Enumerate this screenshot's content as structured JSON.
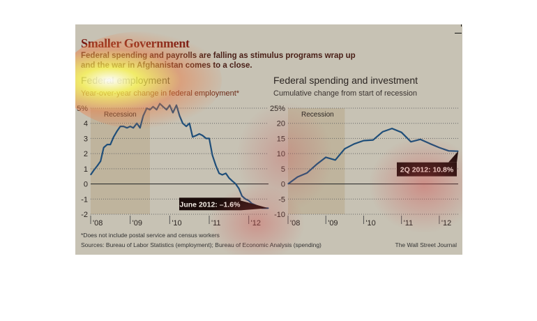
{
  "graphic": {
    "title": "Smaller Government",
    "dek": "Federal spending and payrolls are falling as stimulus programs wrap up and the war in Afghanistan comes to a close.",
    "footnote": "*Does not include postal service and census workers",
    "sources": "Sources: Bureau of Labor Statistics (employment); Bureau of Economic Analysis (spending)",
    "credit": "The Wall Street Journal",
    "colors": {
      "line": "#1f4e79",
      "recession": "#b8aa8a",
      "callout_bg": "#1a0c0a",
      "title": "#7a1c14"
    }
  },
  "chart_data": [
    {
      "type": "line",
      "title": "Federal employment",
      "subtitle": "Year-over-year change in federal employment*",
      "xlabel": "",
      "ylabel": "",
      "ylim": [
        -2,
        5
      ],
      "yticks": [
        5,
        4,
        3,
        2,
        1,
        0,
        -1,
        -2
      ],
      "ytick_labels": [
        "5%",
        "4",
        "3",
        "2",
        "1",
        "0",
        "-1",
        "-2"
      ],
      "xlim": [
        2008.0,
        2012.5
      ],
      "xticks": [
        2008,
        2009,
        2010,
        2011,
        2012
      ],
      "xtick_labels": [
        "'08",
        "'09",
        "'10",
        "'11",
        "'12"
      ],
      "grid": true,
      "recession": {
        "label": "Recession",
        "start": 2008.0,
        "end": 2009.5
      },
      "callout": "June 2012: –1.6%",
      "series": [
        {
          "name": "Federal employment YoY change",
          "x": [
            2008.0,
            2008.08,
            2008.17,
            2008.25,
            2008.33,
            2008.42,
            2008.5,
            2008.58,
            2008.67,
            2008.75,
            2008.83,
            2008.92,
            2009.0,
            2009.08,
            2009.17,
            2009.25,
            2009.33,
            2009.42,
            2009.5,
            2009.58,
            2009.67,
            2009.75,
            2009.83,
            2009.92,
            2010.0,
            2010.08,
            2010.17,
            2010.25,
            2010.33,
            2010.42,
            2010.5,
            2010.58,
            2010.67,
            2010.75,
            2010.83,
            2010.92,
            2011.0,
            2011.08,
            2011.17,
            2011.25,
            2011.33,
            2011.42,
            2011.5,
            2011.58,
            2011.67,
            2011.75,
            2011.83,
            2011.92,
            2012.0,
            2012.08,
            2012.17,
            2012.25,
            2012.33,
            2012.42,
            2012.5
          ],
          "y": [
            0.6,
            0.9,
            1.2,
            1.5,
            2.4,
            2.6,
            2.6,
            3.1,
            3.5,
            3.8,
            3.8,
            3.7,
            3.8,
            3.7,
            4.0,
            3.7,
            4.5,
            5.0,
            4.9,
            5.1,
            4.9,
            5.3,
            5.1,
            4.9,
            5.2,
            4.7,
            5.2,
            4.5,
            4.0,
            3.8,
            4.0,
            3.1,
            3.2,
            3.3,
            3.2,
            3.0,
            3.0,
            1.9,
            1.2,
            0.7,
            0.6,
            0.7,
            0.4,
            0.2,
            0.0,
            -0.3,
            -0.8,
            -1.0,
            -1.1,
            -1.3,
            -1.4,
            -1.5,
            -1.6,
            -1.6,
            -1.6
          ]
        }
      ]
    },
    {
      "type": "line",
      "title": "Federal spending and investment",
      "subtitle": "Cumulative change from start of recession",
      "xlabel": "",
      "ylabel": "",
      "ylim": [
        -10,
        25
      ],
      "yticks": [
        25,
        20,
        15,
        10,
        5,
        0,
        -5,
        -10
      ],
      "ytick_labels": [
        "25%",
        "20",
        "15",
        "10",
        "5",
        "0",
        "-5",
        "-10"
      ],
      "xlim": [
        2008.0,
        2012.5
      ],
      "xticks": [
        2008,
        2009,
        2010,
        2011,
        2012
      ],
      "xtick_labels": [
        "'08",
        "'09",
        "'10",
        "'11",
        "'12"
      ],
      "grid": true,
      "recession": {
        "label": "Recession",
        "start": 2008.0,
        "end": 2009.5
      },
      "callout": "2Q 2012: 10.8%",
      "series": [
        {
          "name": "Federal spending and investment cumulative change",
          "x": [
            2008.0,
            2008.25,
            2008.5,
            2008.75,
            2009.0,
            2009.25,
            2009.5,
            2009.75,
            2010.0,
            2010.25,
            2010.5,
            2010.75,
            2011.0,
            2011.25,
            2011.5,
            2011.75,
            2012.0,
            2012.25,
            2012.5
          ],
          "y": [
            0.0,
            2.3,
            3.6,
            6.4,
            8.8,
            7.9,
            11.6,
            13.2,
            14.3,
            14.5,
            17.2,
            18.3,
            17.0,
            13.9,
            14.7,
            13.3,
            12.0,
            10.9,
            10.8
          ]
        }
      ]
    }
  ]
}
